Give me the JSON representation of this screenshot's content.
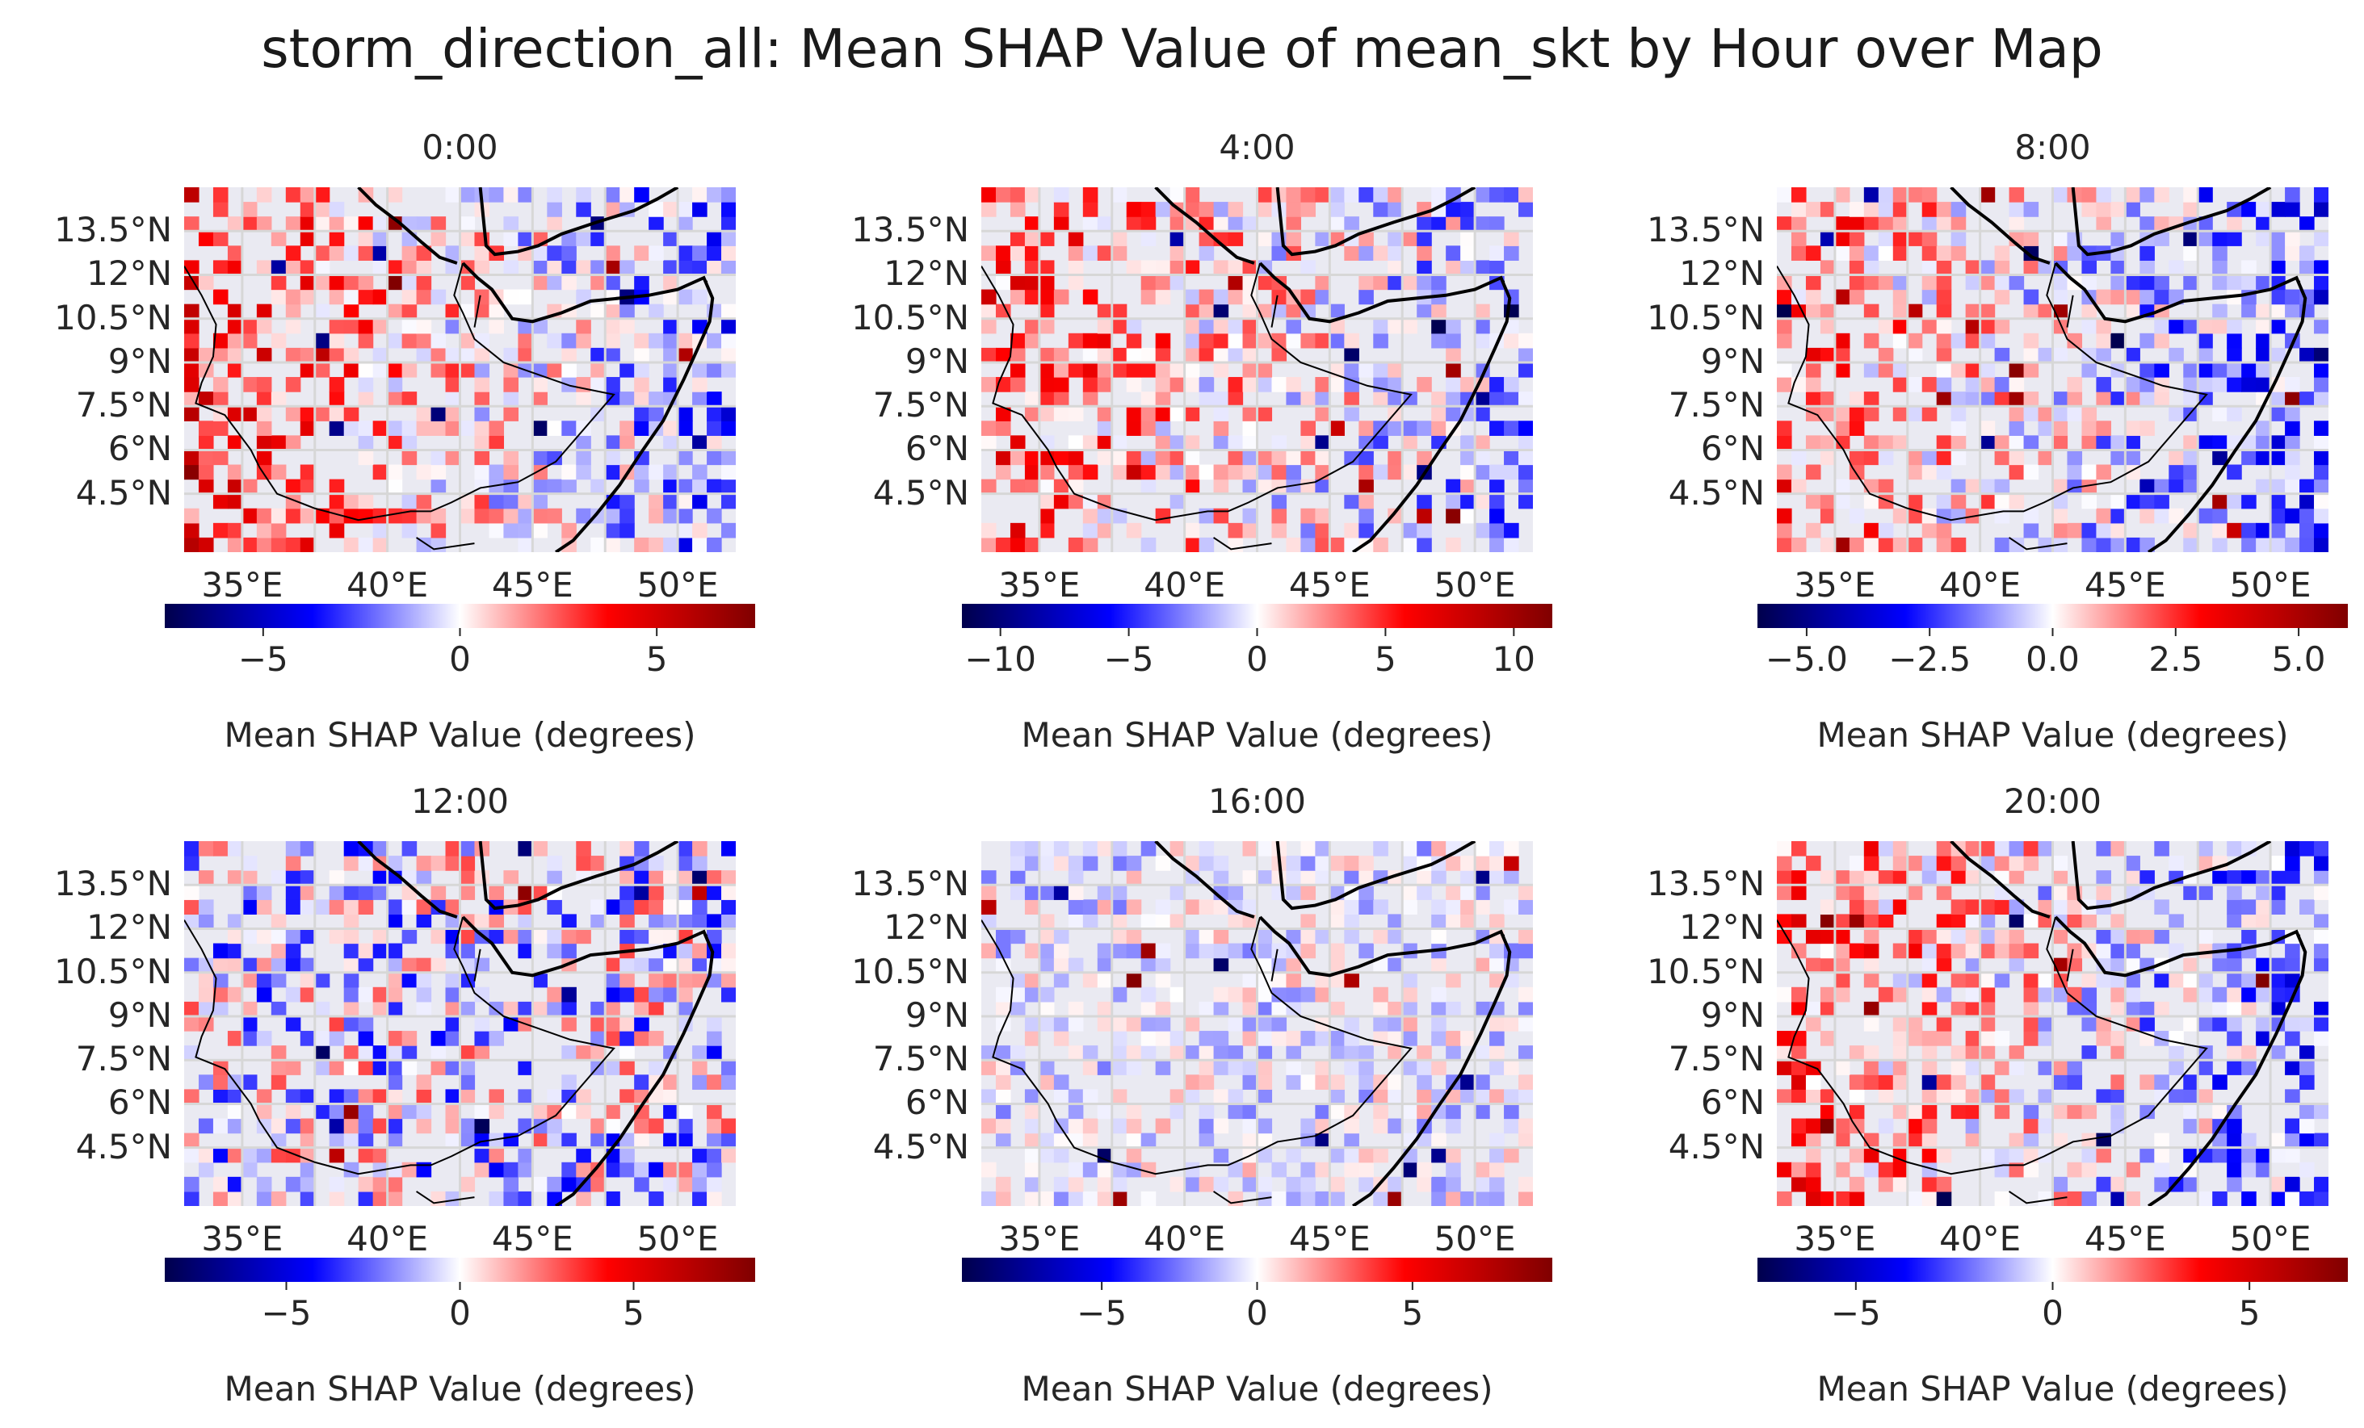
{
  "title": "storm_direction_all: Mean SHAP Value of mean_skt by Hour over Map",
  "colormap": "seismic",
  "colors": {
    "axes_background": "#eaeaf2",
    "grid": "#d7d7d7",
    "coastline": "#000000",
    "cmap_stops": [
      "#00004c",
      "#0000ff",
      "#ffffff",
      "#ff0000",
      "#800000"
    ]
  },
  "chart_data": [
    {
      "type": "heatmap",
      "title": "0:00",
      "lat_ticks": [
        "13.5°N",
        "12°N",
        "10.5°N",
        "9°N",
        "7.5°N",
        "6°N",
        "4.5°N"
      ],
      "lon_ticks": [
        "35°E",
        "40°E",
        "45°E",
        "50°E"
      ],
      "xlim": [
        33,
        52
      ],
      "ylim": [
        2.5,
        15
      ],
      "colorbar": {
        "label": "Mean SHAP Value (degrees)",
        "vmin": -7.5,
        "vmax": 7.5,
        "ticks": [
          -5,
          0,
          5
        ],
        "tick_labels": [
          "−5",
          "0",
          "5"
        ]
      },
      "bias": 0.45,
      "grad": -0.5,
      "zone": "west-red"
    },
    {
      "type": "heatmap",
      "title": "4:00",
      "lat_ticks": [
        "13.5°N",
        "12°N",
        "10.5°N",
        "9°N",
        "7.5°N",
        "6°N",
        "4.5°N"
      ],
      "lon_ticks": [
        "35°E",
        "40°E",
        "45°E",
        "50°E"
      ],
      "xlim": [
        33,
        52
      ],
      "ylim": [
        2.5,
        15
      ],
      "colorbar": {
        "label": "Mean SHAP Value (degrees)",
        "vmin": -11.5,
        "vmax": 11.5,
        "ticks": [
          -10,
          -5,
          0,
          5,
          10
        ],
        "tick_labels": [
          "−10",
          "−5",
          "0",
          "5",
          "10"
        ]
      },
      "bias": 0.35,
      "grad": -0.35,
      "zone": "west-red"
    },
    {
      "type": "heatmap",
      "title": "8:00",
      "lat_ticks": [
        "13.5°N",
        "12°N",
        "10.5°N",
        "9°N",
        "7.5°N",
        "6°N",
        "4.5°N"
      ],
      "lon_ticks": [
        "35°E",
        "40°E",
        "45°E",
        "50°E"
      ],
      "xlim": [
        33,
        52
      ],
      "ylim": [
        2.5,
        15
      ],
      "colorbar": {
        "label": "Mean SHAP Value (degrees)",
        "vmin": -6.0,
        "vmax": 6.0,
        "ticks": [
          -5.0,
          -2.5,
          0.0,
          2.5,
          5.0
        ],
        "tick_labels": [
          "−5.0",
          "−2.5",
          "0.0",
          "2.5",
          "5.0"
        ]
      },
      "bias": 0.3,
      "grad": -0.6,
      "zone": "west-red"
    },
    {
      "type": "heatmap",
      "title": "12:00",
      "lat_ticks": [
        "13.5°N",
        "12°N",
        "10.5°N",
        "9°N",
        "7.5°N",
        "6°N",
        "4.5°N"
      ],
      "lon_ticks": [
        "35°E",
        "40°E",
        "45°E",
        "50°E"
      ],
      "xlim": [
        33,
        52
      ],
      "ylim": [
        2.5,
        15
      ],
      "colorbar": {
        "label": "Mean SHAP Value (degrees)",
        "vmin": -8.5,
        "vmax": 8.5,
        "ticks": [
          -5,
          0,
          5
        ],
        "tick_labels": [
          "−5",
          "0",
          "5"
        ]
      },
      "bias": -0.15,
      "grad": -0.15,
      "zone": "mixed-blue"
    },
    {
      "type": "heatmap",
      "title": "16:00",
      "lat_ticks": [
        "13.5°N",
        "12°N",
        "10.5°N",
        "9°N",
        "7.5°N",
        "6°N",
        "4.5°N"
      ],
      "lon_ticks": [
        "35°E",
        "40°E",
        "45°E",
        "50°E"
      ],
      "xlim": [
        33,
        52
      ],
      "ylim": [
        2.5,
        15
      ],
      "colorbar": {
        "label": "Mean SHAP Value (degrees)",
        "vmin": -9.5,
        "vmax": 9.5,
        "ticks": [
          -5,
          0,
          5
        ],
        "tick_labels": [
          "−5",
          "0",
          "5"
        ]
      },
      "bias": -0.08,
      "grad": -0.1,
      "zone": "faint-blue"
    },
    {
      "type": "heatmap",
      "title": "20:00",
      "lat_ticks": [
        "13.5°N",
        "12°N",
        "10.5°N",
        "9°N",
        "7.5°N",
        "6°N",
        "4.5°N"
      ],
      "lon_ticks": [
        "35°E",
        "40°E",
        "45°E",
        "50°E"
      ],
      "xlim": [
        33,
        52
      ],
      "ylim": [
        2.5,
        15
      ],
      "colorbar": {
        "label": "Mean SHAP Value (degrees)",
        "vmin": -7.5,
        "vmax": 7.5,
        "ticks": [
          -5,
          0,
          5
        ],
        "tick_labels": [
          "−5",
          "0",
          "5"
        ]
      },
      "bias": 0.35,
      "grad": -0.55,
      "zone": "west-red"
    }
  ]
}
